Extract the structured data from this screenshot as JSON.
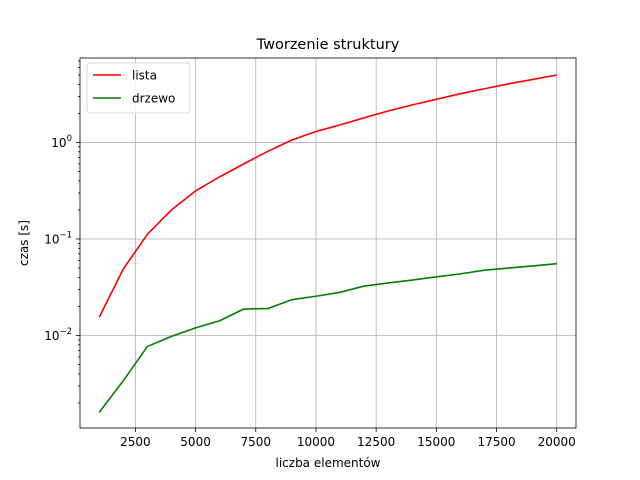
{
  "chart_data": {
    "type": "line",
    "title": "Tworzenie struktury",
    "xlabel": "liczba elementów",
    "ylabel": "czas [s]",
    "xlim": [
      200,
      20800
    ],
    "ylim": [
      0.0011,
      7.5
    ],
    "y_scale": "log",
    "grid": true,
    "legend_position": "top-left",
    "x_ticks": [
      {
        "value": 2500,
        "label": "2500"
      },
      {
        "value": 5000,
        "label": "5000"
      },
      {
        "value": 7500,
        "label": "7500"
      },
      {
        "value": 10000,
        "label": "10000"
      },
      {
        "value": 12500,
        "label": "12500"
      },
      {
        "value": 15000,
        "label": "15000"
      },
      {
        "value": 17500,
        "label": "17500"
      },
      {
        "value": 20000,
        "label": "20000"
      }
    ],
    "y_ticks": [
      {
        "value": 0.01,
        "base": "10",
        "exp": "−2"
      },
      {
        "value": 0.1,
        "base": "10",
        "exp": "−1"
      },
      {
        "value": 1,
        "base": "10",
        "exp": "0"
      }
    ],
    "x": [
      1000,
      2000,
      3000,
      4000,
      5000,
      6000,
      7000,
      8000,
      9000,
      10000,
      11000,
      12000,
      13000,
      14000,
      15000,
      16000,
      17000,
      18000,
      19000,
      20000
    ],
    "series": [
      {
        "name": "lista",
        "color": "#ff0000",
        "values": [
          0.0155,
          0.049,
          0.112,
          0.2,
          0.315,
          0.44,
          0.6,
          0.81,
          1.06,
          1.3,
          1.52,
          1.8,
          2.12,
          2.45,
          2.8,
          3.2,
          3.6,
          4.05,
          4.5,
          5.0
        ]
      },
      {
        "name": "drzewo",
        "color": "#008000",
        "values": [
          0.0016,
          0.0034,
          0.0077,
          0.0098,
          0.012,
          0.0142,
          0.0188,
          0.019,
          0.0235,
          0.0255,
          0.028,
          0.0325,
          0.035,
          0.0375,
          0.0405,
          0.0435,
          0.0475,
          0.05,
          0.0525,
          0.0555
        ]
      }
    ]
  }
}
